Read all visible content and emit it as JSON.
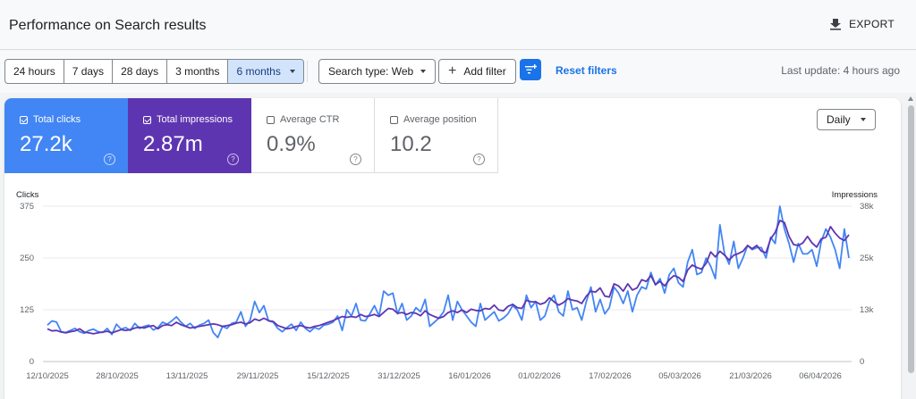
{
  "header": {
    "title": "Performance on Search results",
    "export_label": "EXPORT",
    "export_icon": "download-icon"
  },
  "toolbar": {
    "date_ranges": [
      {
        "label": "24 hours",
        "active": false
      },
      {
        "label": "7 days",
        "active": false
      },
      {
        "label": "28 days",
        "active": false
      },
      {
        "label": "3 months",
        "active": false
      },
      {
        "label": "6 months",
        "active": true
      }
    ],
    "search_type_label": "Search type: Web",
    "add_filter_label": "Add filter",
    "reset_filters_label": "Reset filters",
    "last_update": "Last update: 4 hours ago"
  },
  "metrics": {
    "clicks": {
      "label": "Total clicks",
      "value": "27.2k",
      "checked": true,
      "color": "#4285f4"
    },
    "impressions": {
      "label": "Total impressions",
      "value": "2.87m",
      "checked": true,
      "color": "#5e35b1"
    },
    "ctr": {
      "label": "Average CTR",
      "value": "0.9%",
      "checked": false
    },
    "position": {
      "label": "Average position",
      "value": "10.2",
      "checked": false
    }
  },
  "granularity": "Daily",
  "chart_data": {
    "type": "line",
    "left_axis": {
      "label": "Clicks",
      "ticks": [
        "375",
        "250",
        "125",
        "0"
      ],
      "range": [
        0,
        375
      ]
    },
    "right_axis": {
      "label": "Impressions",
      "ticks": [
        "38k",
        "25k",
        "13k",
        "0"
      ],
      "range": [
        0,
        38000
      ]
    },
    "x_ticks": [
      "12/10/2025",
      "28/10/2025",
      "13/11/2025",
      "29/11/2025",
      "15/12/2025",
      "31/12/2025",
      "16/01/2026",
      "01/02/2026",
      "17/02/2026",
      "05/03/2026",
      "21/03/2026",
      "06/04/2026"
    ],
    "grid": true,
    "series": [
      {
        "name": "Total clicks",
        "axis": "left",
        "color": "#4285f4",
        "values": [
          88,
          98,
          95,
          72,
          70,
          75,
          80,
          72,
          68,
          75,
          78,
          72,
          70,
          80,
          65,
          90,
          78,
          82,
          75,
          92,
          80,
          85,
          88,
          76,
          82,
          95,
          90,
          98,
          108,
          95,
          85,
          92,
          80,
          88,
          92,
          100,
          70,
          58,
          85,
          80,
          92,
          95,
          120,
          85,
          100,
          145,
          118,
          135,
          98,
          95,
          80,
          72,
          82,
          90,
          75,
          95,
          80,
          72,
          82,
          78,
          88,
          90,
          95,
          110,
          75,
          125,
          110,
          140,
          100,
          98,
          115,
          135,
          110,
          170,
          160,
          165,
          115,
          140,
          100,
          110,
          130,
          120,
          150,
          85,
          95,
          105,
          120,
          160,
          100,
          145,
          125,
          110,
          95,
          85,
          140,
          100,
          110,
          120,
          98,
          105,
          115,
          135,
          125,
          100,
          160,
          130,
          145,
          100,
          110,
          145,
          160,
          120,
          110,
          170,
          125,
          130,
          100,
          145,
          180,
          120,
          150,
          115,
          130,
          180,
          165,
          140,
          170,
          120,
          160,
          180,
          175,
          215,
          185,
          200,
          165,
          210,
          225,
          190,
          180,
          240,
          270,
          210,
          215,
          250,
          230,
          200,
          330,
          260,
          235,
          290,
          225,
          250,
          280,
          270,
          275,
          275,
          250,
          300,
          285,
          375,
          320,
          285,
          240,
          285,
          260,
          260,
          270,
          230,
          290,
          320,
          300,
          270,
          225,
          320,
          250
        ]
      },
      {
        "name": "Total impressions",
        "axis": "right",
        "color": "#5e35b1",
        "values": [
          8000,
          7500,
          7600,
          7200,
          7000,
          7300,
          7500,
          8000,
          7200,
          7000,
          6800,
          7000,
          7200,
          7400,
          7000,
          7400,
          7800,
          7600,
          7800,
          8200,
          8400,
          8200,
          8600,
          8800,
          8000,
          8800,
          9000,
          8800,
          9600,
          9000,
          8600,
          8200,
          8400,
          8600,
          8800,
          9000,
          9200,
          9000,
          8600,
          8800,
          9000,
          9400,
          9600,
          9200,
          9500,
          10400,
          10000,
          10600,
          10000,
          9800,
          8800,
          8400,
          8000,
          8200,
          8600,
          8800,
          8400,
          8200,
          8600,
          8800,
          9200,
          9600,
          10000,
          10500,
          11000,
          10800,
          11000,
          10800,
          11500,
          11000,
          11200,
          11500,
          11000,
          12000,
          13000,
          12800,
          11800,
          12000,
          11500,
          12000,
          11800,
          11200,
          12400,
          11500,
          11000,
          10600,
          11000,
          12000,
          12400,
          12000,
          12600,
          12000,
          12800,
          12500,
          12400,
          13000,
          12800,
          13800,
          12600,
          12400,
          13500,
          14000,
          13200,
          13000,
          15000,
          14600,
          14600,
          14000,
          14400,
          15600,
          14600,
          13800,
          14400,
          15400,
          15000,
          14800,
          14200,
          16000,
          17200,
          17000,
          18000,
          16000,
          15800,
          19000,
          18500,
          17200,
          19000,
          17500,
          18000,
          20000,
          19600,
          21000,
          18800,
          19600,
          18500,
          20000,
          21000,
          20600,
          19600,
          22400,
          23600,
          23000,
          22600,
          24000,
          26800,
          25600,
          27000,
          26000,
          24800,
          26000,
          26400,
          27000,
          28400,
          27600,
          28400,
          27000,
          26600,
          30000,
          31600,
          34500,
          34000,
          30600,
          28600,
          28400,
          29000,
          30600,
          29000,
          28000,
          30000,
          30400,
          33000,
          31400,
          30200,
          29600,
          31000
        ]
      }
    ]
  }
}
